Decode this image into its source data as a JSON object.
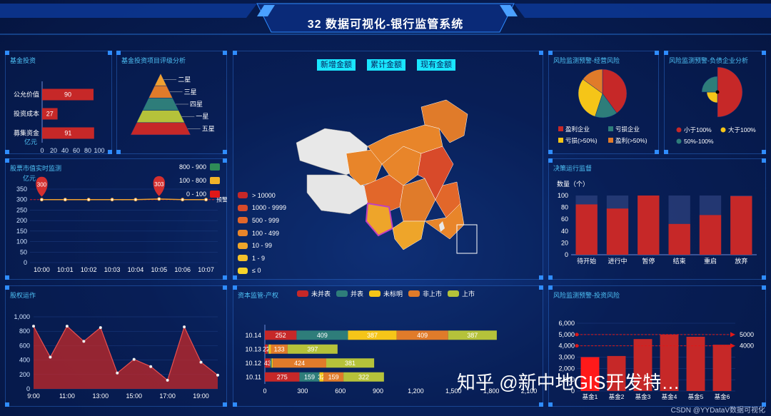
{
  "header": {
    "title": "32 数据可视化-银行监管系统"
  },
  "panels": {
    "fund": "基金投资",
    "fund_rating": "基金投资项目评级分析",
    "stock": "股票市值实时监测",
    "equity": "股权运作",
    "capital": "资本监管-产权",
    "risk_op": "风险监测预警-经营风险",
    "risk_debt": "风险监测预警-负债企业分析",
    "decision": "决策运行监督",
    "risk_invest": "风险监测预警-投资风险"
  },
  "map": {
    "buttons": [
      "新增金额",
      "累计金额",
      "现有金额"
    ],
    "legend": [
      {
        "label": "> 10000",
        "color": "#c62828"
      },
      {
        "label": "1000 - 9999",
        "color": "#d84a2a"
      },
      {
        "label": "500 - 999",
        "color": "#e2672a"
      },
      {
        "label": "100 - 499",
        "color": "#e8852a"
      },
      {
        "label": "10 - 99",
        "color": "#eea52a"
      },
      {
        "label": "1 - 9",
        "color": "#f3c12a"
      },
      {
        "label": "≤ 0",
        "color": "#f6d42a"
      }
    ]
  },
  "chart_data": [
    {
      "id": "fund",
      "type": "bar",
      "orientation": "horizontal",
      "categories": [
        "公允价值",
        "投资成本",
        "募集资金"
      ],
      "values": [
        90,
        27,
        91
      ],
      "ylabel": "亿元",
      "xticks": [
        "0",
        "20",
        "40",
        "60",
        "80",
        "100"
      ],
      "xlim": [
        0,
        100
      ],
      "color": "#c62828"
    },
    {
      "id": "fund_rating",
      "type": "pyramid",
      "categories": [
        "二星",
        "三星",
        "四星",
        "一星",
        "五星"
      ],
      "colors": [
        "#f0a030",
        "#e07b2a",
        "#2e7d7a",
        "#b5c23a",
        "#c62828"
      ]
    },
    {
      "id": "stock",
      "type": "line",
      "x": [
        "10:00",
        "10:01",
        "10:02",
        "10:03",
        "10:04",
        "10:05",
        "10:06",
        "10:07"
      ],
      "values": [
        300,
        300,
        300,
        300,
        300,
        303,
        300,
        300
      ],
      "markers": [
        {
          "label": "300",
          "index": 0,
          "value": 300
        },
        {
          "label": "303",
          "index": 5,
          "value": 303
        }
      ],
      "ylabel": "亿元",
      "yticks": [
        "0",
        "50",
        "100",
        "150",
        "200",
        "250",
        "300",
        "350"
      ],
      "ylim": [
        0,
        350
      ],
      "markline_label": "预警",
      "markline_value": 300,
      "legend": [
        {
          "label": "800 - 900",
          "color": "#2e8b57"
        },
        {
          "label": "100 - 800",
          "color": "#f0b428"
        },
        {
          "label": "0 - 100",
          "color": "#e01818"
        }
      ],
      "color": "#f0a030"
    },
    {
      "id": "equity",
      "type": "area",
      "x": [
        "9:00",
        "10:00",
        "11:00",
        "12:00",
        "13:00",
        "14:00",
        "15:00",
        "16:00",
        "17:00",
        "18:00",
        "19:00",
        "20:00"
      ],
      "xticks": [
        "9:00",
        "11:00",
        "13:00",
        "15:00",
        "17:00",
        "19:00"
      ],
      "values": [
        870,
        440,
        870,
        660,
        850,
        220,
        410,
        310,
        120,
        860,
        370,
        190
      ],
      "yticks": [
        "0",
        "200",
        "400",
        "600",
        "800",
        "1,000"
      ],
      "ylim": [
        0,
        1000
      ],
      "color": "#c62828"
    },
    {
      "id": "capital",
      "type": "bar",
      "orientation": "horizontal",
      "stacked": true,
      "categories": [
        "10.14",
        "10.13",
        "10.12",
        "10.11"
      ],
      "series": [
        {
          "name": "未并表",
          "color": "#c62828",
          "values": [
            252,
            23,
            43,
            275
          ]
        },
        {
          "name": "并表",
          "color": "#2e7d7a",
          "values": [
            409,
            7,
            11,
            159
          ]
        },
        {
          "name": "未标明",
          "color": "#f5c518",
          "values": [
            387,
            18,
            10,
            32
          ]
        },
        {
          "name": "非上市",
          "color": "#e07b2a",
          "values": [
            409,
            133,
            424,
            159
          ]
        },
        {
          "name": "上市",
          "color": "#b5c23a",
          "values": [
            387,
            397,
            381,
            322
          ]
        }
      ],
      "labels": [
        [
          "252",
          "409",
          "387",
          "409",
          "387"
        ],
        [
          "23",
          "7",
          "",
          "133",
          "397"
        ],
        [
          "43",
          "",
          "",
          "424",
          "381"
        ],
        [
          "275",
          "159",
          "32",
          "159",
          "322"
        ]
      ],
      "xticks": [
        "0",
        "300",
        "600",
        "900",
        "1,200",
        "1,500",
        "1,800",
        "2,100"
      ],
      "xlim": [
        0,
        2100
      ]
    },
    {
      "id": "risk_op",
      "type": "pie",
      "series": [
        {
          "name": "盈利企业",
          "value": 40,
          "color": "#c62828"
        },
        {
          "name": "亏损企业",
          "value": 15,
          "color": "#2e7d7a"
        },
        {
          "name": "亏损(>50%)",
          "value": 30,
          "color": "#f5c518"
        },
        {
          "name": "盈利(>50%)",
          "value": 15,
          "color": "#e07b2a"
        }
      ]
    },
    {
      "id": "risk_debt",
      "type": "pie",
      "roseType": true,
      "series": [
        {
          "name": "小于100%",
          "value": 50,
          "color": "#c62828"
        },
        {
          "name": "大于100%",
          "value": 25,
          "color": "#f5c518"
        },
        {
          "name": "50%-100%",
          "value": 25,
          "color": "#2e7d7a"
        }
      ]
    },
    {
      "id": "decision",
      "type": "bar",
      "categories": [
        "待开始",
        "进行中",
        "暂停",
        "结束",
        "重启",
        "放弃"
      ],
      "values": [
        85,
        78,
        100,
        52,
        67,
        99
      ],
      "ylim": [
        0,
        100
      ],
      "yticks": [
        "0",
        "20",
        "40",
        "60",
        "80",
        "100"
      ],
      "ylabel": "数量（个）",
      "color": "#c62828",
      "bg_color": "#2a3f7a"
    },
    {
      "id": "risk_invest",
      "type": "bar",
      "categories": [
        "基金1",
        "基金2",
        "基金3",
        "基金4",
        "基金5",
        "基金6"
      ],
      "values": [
        3000,
        3100,
        4600,
        5000,
        4800,
        4100
      ],
      "ylim": [
        0,
        6000
      ],
      "yticks": [
        "0",
        "1,000",
        "2,000",
        "3,000",
        "4,000",
        "5,000",
        "6,000"
      ],
      "marklines": [
        {
          "label": "5000",
          "value": 5000
        },
        {
          "label": "4000",
          "value": 4000
        }
      ],
      "color": "#c62828"
    }
  ],
  "watermark": "知乎 @新中地GIS开发特…",
  "credit": "CSDN @YYDataV数据可视化"
}
